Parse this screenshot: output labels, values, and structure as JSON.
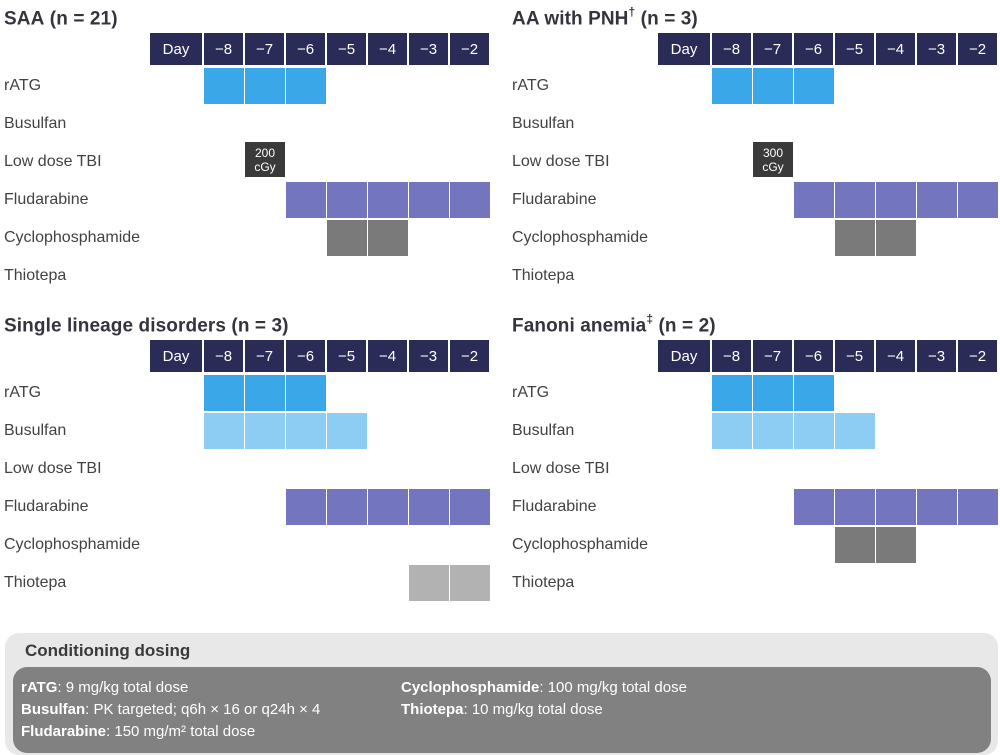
{
  "colors": {
    "header_navy": "#2b2b58",
    "ratg_blue": "#3aa8e8",
    "busulfan_blue": "#8dcdf3",
    "tbi_badge_dark": "#3a3a3a",
    "fludarabine_purple": "#7375bf",
    "cyclophosphamide_gray": "#7a7a7a",
    "thiotepa_gray": "#b2b2b2",
    "dosing_box_light": "#e8e8e8",
    "dosing_body_gray": "#818181"
  },
  "day_header": [
    "Day",
    "−8",
    "−7",
    "−6",
    "−5",
    "−4",
    "−3",
    "−2"
  ],
  "drugs": [
    {
      "label": "rATG",
      "color": "#3aa8e8"
    },
    {
      "label": "Busulfan",
      "color": "#8dcdf3"
    },
    {
      "label": "Low dose TBI",
      "color": "#3a3a3a"
    },
    {
      "label": "Fludarabine",
      "color": "#7375bf"
    },
    {
      "label": "Cyclophosphamide",
      "color": "#7a7a7a"
    },
    {
      "label": "Thiotepa",
      "color": "#b2b2b2"
    }
  ],
  "panels": [
    {
      "title_main": "SAA",
      "title_sup": "",
      "title_n": " (n = 21)",
      "days_by_drug": [
        [
          0,
          1,
          2
        ],
        [],
        [],
        [
          2,
          3,
          4,
          5,
          6
        ],
        [
          3,
          4
        ],
        []
      ],
      "tbi_badge": {
        "col": 1,
        "line1": "200",
        "line2": "cGy"
      }
    },
    {
      "title_main": "AA with PNH",
      "title_sup": "†",
      "title_n": " (n = 3)",
      "days_by_drug": [
        [
          0,
          1,
          2
        ],
        [],
        [],
        [
          2,
          3,
          4,
          5,
          6
        ],
        [
          3,
          4
        ],
        []
      ],
      "tbi_badge": {
        "col": 1,
        "line1": "300",
        "line2": "cGy"
      }
    },
    {
      "title_main": "Single lineage disorders",
      "title_sup": "",
      "title_n": " (n = 3)",
      "days_by_drug": [
        [
          0,
          1,
          2
        ],
        [
          0,
          1,
          2,
          3
        ],
        [],
        [
          2,
          3,
          4,
          5,
          6
        ],
        [],
        [
          5,
          6
        ]
      ],
      "tbi_badge": null
    },
    {
      "title_main": "Fanoni anemia",
      "title_sup": "‡",
      "title_n": " (n = 2)",
      "days_by_drug": [
        [
          0,
          1,
          2
        ],
        [
          0,
          1,
          2,
          3
        ],
        [],
        [
          2,
          3,
          4,
          5,
          6
        ],
        [
          3,
          4
        ],
        []
      ],
      "tbi_badge": null
    }
  ],
  "dosing": {
    "title": "Conditioning dosing",
    "columns": [
      [
        {
          "name": "rATG",
          "rest": ": 9 mg/kg total dose"
        },
        {
          "name": "Busulfan",
          "rest": ": PK targeted; q6h × 16 or q24h × 4"
        },
        {
          "name": "Fludarabine",
          "rest": ": 150 mg/m² total dose"
        }
      ],
      [
        {
          "name": "Cyclophosphamide",
          "rest": ": 100 mg/kg total dose"
        },
        {
          "name": "Thiotepa",
          "rest": ": 10 mg/kg total dose"
        }
      ]
    ]
  }
}
